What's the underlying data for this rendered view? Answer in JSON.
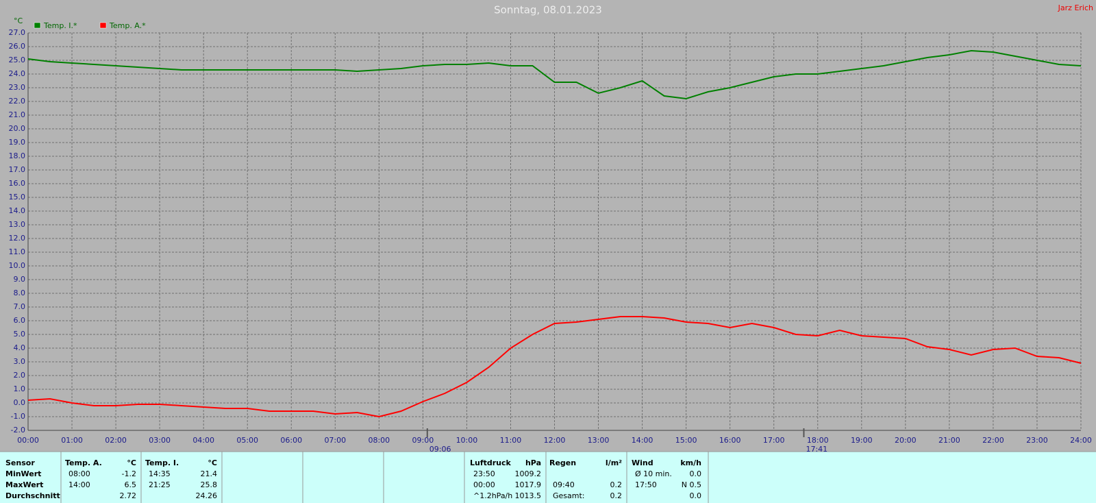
{
  "chart_data": {
    "type": "line",
    "title": "Sonntag, 08.01.2023",
    "author": "Jarz Erich",
    "y_label": "°C",
    "x": [
      0,
      0.5,
      1,
      1.5,
      2,
      2.5,
      3,
      3.5,
      4,
      4.5,
      5,
      5.5,
      6,
      6.5,
      7,
      7.5,
      8,
      8.5,
      9,
      9.5,
      10,
      10.5,
      11,
      11.5,
      12,
      12.5,
      13,
      13.5,
      14,
      14.5,
      15,
      15.5,
      16,
      16.5,
      17,
      17.5,
      18,
      18.5,
      19,
      19.5,
      20,
      20.5,
      21,
      21.5,
      22,
      22.5,
      23,
      23.5,
      24
    ],
    "series": [
      {
        "name": "Temp. I.*",
        "color": "#008000",
        "values": [
          25.1,
          24.9,
          24.8,
          24.7,
          24.6,
          24.5,
          24.4,
          24.3,
          24.3,
          24.3,
          24.3,
          24.3,
          24.3,
          24.3,
          24.3,
          24.2,
          24.3,
          24.4,
          24.6,
          24.7,
          24.7,
          24.8,
          24.6,
          24.6,
          23.4,
          23.4,
          22.6,
          23.0,
          23.5,
          22.4,
          22.2,
          22.7,
          23.0,
          23.4,
          23.8,
          24.0,
          24.0,
          24.2,
          24.4,
          24.6,
          24.9,
          25.2,
          25.4,
          25.7,
          25.6,
          25.3,
          25.0,
          24.7,
          24.6
        ]
      },
      {
        "name": "Temp. A.*",
        "color": "#ff0000",
        "values": [
          0.2,
          0.3,
          0.0,
          -0.2,
          -0.2,
          -0.1,
          -0.1,
          -0.2,
          -0.3,
          -0.4,
          -0.4,
          -0.6,
          -0.6,
          -0.6,
          -0.8,
          -0.7,
          -1.0,
          -0.6,
          0.1,
          0.7,
          1.5,
          2.6,
          4.0,
          5.0,
          5.8,
          5.9,
          6.1,
          6.3,
          6.3,
          6.2,
          5.9,
          5.8,
          5.5,
          5.8,
          5.5,
          5.0,
          4.9,
          5.3,
          4.9,
          4.8,
          4.7,
          4.1,
          3.9,
          3.5,
          3.9,
          4.0,
          3.4,
          3.3,
          2.9
        ]
      }
    ],
    "xlim": [
      0,
      24
    ],
    "xticks": [
      {
        "value": 0,
        "label": "00:00"
      },
      {
        "value": 1,
        "label": "01:00"
      },
      {
        "value": 2,
        "label": "02:00"
      },
      {
        "value": 3,
        "label": "03:00"
      },
      {
        "value": 4,
        "label": "04:00"
      },
      {
        "value": 5,
        "label": "05:00"
      },
      {
        "value": 6,
        "label": "06:00"
      },
      {
        "value": 7,
        "label": "07:00"
      },
      {
        "value": 8,
        "label": "08:00"
      },
      {
        "value": 9,
        "label": "09:00"
      },
      {
        "value": 10,
        "label": "10:00"
      },
      {
        "value": 11,
        "label": "11:00"
      },
      {
        "value": 12,
        "label": "12:00"
      },
      {
        "value": 13,
        "label": "13:00"
      },
      {
        "value": 14,
        "label": "14:00"
      },
      {
        "value": 15,
        "label": "15:00"
      },
      {
        "value": 16,
        "label": "16:00"
      },
      {
        "value": 17,
        "label": "17:00"
      },
      {
        "value": 18,
        "label": "18:00"
      },
      {
        "value": 19,
        "label": "19:00"
      },
      {
        "value": 20,
        "label": "20:00"
      },
      {
        "value": 21,
        "label": "21:00"
      },
      {
        "value": 22,
        "label": "22:00"
      },
      {
        "value": 23,
        "label": "23:00"
      },
      {
        "value": 24,
        "label": "24:00"
      }
    ],
    "ylim": [
      -2,
      27
    ],
    "yticks": [
      {
        "value": -2,
        "label": "-2.0"
      },
      {
        "value": -1,
        "label": "-1.0"
      },
      {
        "value": 0,
        "label": "0.0"
      },
      {
        "value": 1,
        "label": "1.0"
      },
      {
        "value": 2,
        "label": "2.0"
      },
      {
        "value": 3,
        "label": "3.0"
      },
      {
        "value": 4,
        "label": "4.0"
      },
      {
        "value": 5,
        "label": "5.0"
      },
      {
        "value": 6,
        "label": "6.0"
      },
      {
        "value": 7,
        "label": "7.0"
      },
      {
        "value": 8,
        "label": "8.0"
      },
      {
        "value": 9,
        "label": "9.0"
      },
      {
        "value": 10,
        "label": "10.0"
      },
      {
        "value": 11,
        "label": "11.0"
      },
      {
        "value": 12,
        "label": "12.0"
      },
      {
        "value": 13,
        "label": "13.0"
      },
      {
        "value": 14,
        "label": "14.0"
      },
      {
        "value": 15,
        "label": "15.0"
      },
      {
        "value": 16,
        "label": "16.0"
      },
      {
        "value": 17,
        "label": "17.0"
      },
      {
        "value": 18,
        "label": "18.0"
      },
      {
        "value": 19,
        "label": "19.0"
      },
      {
        "value": 20,
        "label": "20.0"
      },
      {
        "value": 21,
        "label": "21.0"
      },
      {
        "value": 22,
        "label": "22.0"
      },
      {
        "value": 23,
        "label": "23.0"
      },
      {
        "value": 24,
        "label": "24.0"
      },
      {
        "value": 25,
        "label": "25.0"
      },
      {
        "value": 26,
        "label": "26.0"
      },
      {
        "value": 27,
        "label": "27.0"
      }
    ],
    "grid": true,
    "markers": [
      {
        "x": 9.1,
        "label": "09:06"
      },
      {
        "x": 17.6833,
        "label": "17:41"
      }
    ]
  },
  "stats": {
    "sensor": [
      "Sensor",
      "MinWert",
      "MaxWert",
      "Durchschnitt"
    ],
    "temp_a": {
      "header": [
        "Temp. A.",
        "°C"
      ],
      "rows": [
        [
          "08:00",
          "-1.2"
        ],
        [
          "14:00",
          "6.5"
        ],
        [
          "2.72"
        ]
      ]
    },
    "temp_i": {
      "header": [
        "Temp. I.",
        "°C"
      ],
      "rows": [
        [
          "14:35",
          "21.4"
        ],
        [
          "21:25",
          "25.8"
        ],
        [
          "24.26"
        ]
      ]
    },
    "luftdruck": {
      "header": [
        "Luftdruck",
        "hPa"
      ],
      "rows": [
        [
          "23:50",
          "1009.2"
        ],
        [
          "00:00",
          "1017.9"
        ],
        [
          "^1.2hPa/h",
          "1013.5"
        ]
      ]
    },
    "regen": {
      "header": [
        "Regen",
        "l/m²"
      ],
      "rows": [
        [
          "09:40",
          "0.2"
        ],
        [
          "Gesamt:",
          "0.2"
        ]
      ]
    },
    "wind": {
      "header": [
        "Wind",
        "km/h"
      ],
      "rows": [
        [
          "Ø 10 min.",
          "0.0"
        ],
        [
          "17:50",
          "N 0.5"
        ],
        [
          "0.0"
        ]
      ]
    }
  }
}
